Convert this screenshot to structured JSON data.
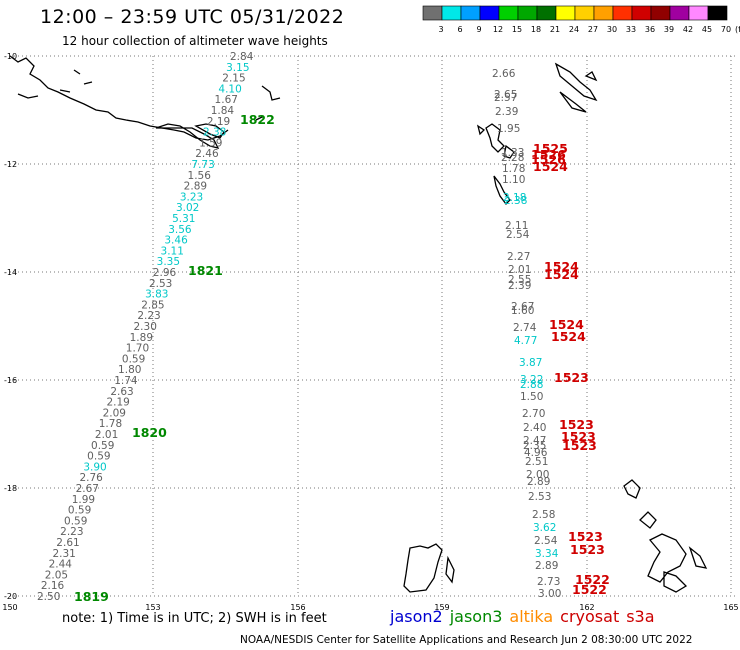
{
  "header": {
    "title": "12:00 – 23:59 UTC 05/31/2022",
    "subtitle": "12 hour collection of altimeter wave heights"
  },
  "colorbar": {
    "labels": [
      "3",
      "6",
      "9",
      "12",
      "15",
      "18",
      "21",
      "24",
      "27",
      "30",
      "33",
      "36",
      "39",
      "42",
      "45",
      "70"
    ],
    "unit": "(ft)",
    "colors": [
      "#707070",
      "#00e8e8",
      "#00a0ff",
      "#0000ff",
      "#00d000",
      "#00a800",
      "#007000",
      "#ffff00",
      "#ffd000",
      "#ffa000",
      "#ff3000",
      "#d00000",
      "#900000",
      "#a000a0",
      "#ff88ff",
      "#000000"
    ]
  },
  "axes": {
    "lat_labels": [
      "-10",
      "-12",
      "-14",
      "-16",
      "-18",
      "-20"
    ],
    "lon_labels": [
      "150",
      "153",
      "156",
      "159",
      "162",
      "165"
    ]
  },
  "colors": {
    "gray": "#606060",
    "cyan": "#00c8c8",
    "green": "#008800",
    "red": "#d00000",
    "blue": "#0000d0",
    "orange": "#ff8c00",
    "crimson": "#cc0000"
  },
  "track_left": {
    "obs": [
      {
        "t": "2.84",
        "c": "gray"
      },
      {
        "t": "3.15",
        "c": "cyan"
      },
      {
        "t": "2.15",
        "c": "gray"
      },
      {
        "t": "4.10",
        "c": "cyan"
      },
      {
        "t": "1.67",
        "c": "gray"
      },
      {
        "t": "1.84",
        "c": "gray"
      },
      {
        "t": "2.19",
        "c": "gray"
      },
      {
        "t": "2.38",
        "c": "cyan"
      },
      {
        "t": "1.59",
        "c": "gray"
      },
      {
        "t": "2.46",
        "c": "gray"
      },
      {
        "t": "7.73",
        "c": "cyan"
      },
      {
        "t": "1.56",
        "c": "gray"
      },
      {
        "t": "2.89",
        "c": "gray"
      },
      {
        "t": "3.23",
        "c": "cyan"
      },
      {
        "t": "3.02",
        "c": "cyan"
      },
      {
        "t": "5.31",
        "c": "cyan"
      },
      {
        "t": "3.56",
        "c": "cyan"
      },
      {
        "t": "3.46",
        "c": "cyan"
      },
      {
        "t": "3.11",
        "c": "cyan"
      },
      {
        "t": "3.35",
        "c": "cyan"
      },
      {
        "t": "2.96",
        "c": "gray"
      },
      {
        "t": "2.53",
        "c": "gray"
      },
      {
        "t": "3.83",
        "c": "cyan"
      },
      {
        "t": "2.85",
        "c": "gray"
      },
      {
        "t": "2.23",
        "c": "gray"
      },
      {
        "t": "2.30",
        "c": "gray"
      },
      {
        "t": "1.89",
        "c": "gray"
      },
      {
        "t": "1.70",
        "c": "gray"
      },
      {
        "t": "0.59",
        "c": "gray"
      },
      {
        "t": "1.80",
        "c": "gray"
      },
      {
        "t": "1.74",
        "c": "gray"
      },
      {
        "t": "2.63",
        "c": "gray"
      },
      {
        "t": "2.19",
        "c": "gray"
      },
      {
        "t": "2.09",
        "c": "gray"
      },
      {
        "t": "1.78",
        "c": "gray"
      },
      {
        "t": "2.01",
        "c": "gray"
      },
      {
        "t": "0.59",
        "c": "gray"
      },
      {
        "t": "0.59",
        "c": "gray"
      },
      {
        "t": "3.90",
        "c": "cyan"
      },
      {
        "t": "2.76",
        "c": "gray"
      },
      {
        "t": "2.67",
        "c": "gray"
      },
      {
        "t": "1.99",
        "c": "gray"
      },
      {
        "t": "0.59",
        "c": "gray"
      },
      {
        "t": "0.59",
        "c": "gray"
      },
      {
        "t": "2.23",
        "c": "gray"
      },
      {
        "t": "2.61",
        "c": "gray"
      },
      {
        "t": "2.31",
        "c": "gray"
      },
      {
        "t": "2.44",
        "c": "gray"
      },
      {
        "t": "2.05",
        "c": "gray"
      },
      {
        "t": "2.16",
        "c": "gray"
      },
      {
        "t": "2.50",
        "c": "gray"
      }
    ],
    "times": [
      "1822",
      "1821",
      "1820",
      "1819"
    ]
  },
  "track_right": {
    "obs": [
      {
        "t": "2.66",
        "c": "gray"
      },
      {
        "t": "2.65",
        "c": "gray"
      },
      {
        "t": "2.57",
        "c": "gray"
      },
      {
        "t": "2.39",
        "c": "gray"
      },
      {
        "t": "1.95",
        "c": "gray"
      },
      {
        "t": "1.33",
        "c": "gray"
      },
      {
        "t": "2.28",
        "c": "gray"
      },
      {
        "t": "1.78",
        "c": "gray"
      },
      {
        "t": "1.10",
        "c": "gray"
      },
      {
        "t": "2.18",
        "c": "cyan"
      },
      {
        "t": "2.38",
        "c": "cyan"
      },
      {
        "t": "2.11",
        "c": "gray"
      },
      {
        "t": "2.54",
        "c": "gray"
      },
      {
        "t": "2.27",
        "c": "gray"
      },
      {
        "t": "2.01",
        "c": "gray"
      },
      {
        "t": "2.55",
        "c": "gray"
      },
      {
        "t": "2.39",
        "c": "gray"
      },
      {
        "t": "2.67",
        "c": "gray"
      },
      {
        "t": "1.60",
        "c": "gray"
      },
      {
        "t": "2.74",
        "c": "gray"
      },
      {
        "t": "4.77",
        "c": "cyan"
      },
      {
        "t": "3.87",
        "c": "cyan"
      },
      {
        "t": "3.22",
        "c": "cyan"
      },
      {
        "t": "2.88",
        "c": "cyan"
      },
      {
        "t": "1.50",
        "c": "gray"
      },
      {
        "t": "2.70",
        "c": "gray"
      },
      {
        "t": "2.40",
        "c": "gray"
      },
      {
        "t": "2.47",
        "c": "gray"
      },
      {
        "t": "2.35",
        "c": "gray"
      },
      {
        "t": "4.96",
        "c": "gray"
      },
      {
        "t": "2.51",
        "c": "gray"
      },
      {
        "t": "2.00",
        "c": "gray"
      },
      {
        "t": "2.89",
        "c": "gray"
      },
      {
        "t": "2.53",
        "c": "gray"
      },
      {
        "t": "2.58",
        "c": "gray"
      },
      {
        "t": "3.62",
        "c": "cyan"
      },
      {
        "t": "2.54",
        "c": "gray"
      },
      {
        "t": "3.34",
        "c": "cyan"
      },
      {
        "t": "2.89",
        "c": "gray"
      },
      {
        "t": "2.73",
        "c": "gray"
      },
      {
        "t": "3.00",
        "c": "gray"
      }
    ],
    "times": [
      "1525",
      "1526",
      "1526",
      "1524",
      "1524",
      "1524",
      "1524",
      "1524",
      "1523",
      "1523",
      "1523",
      "1523",
      "1523",
      "1523",
      "1522",
      "1522"
    ]
  },
  "footer": {
    "note": "note: 1) Time is in UTC; 2) SWH is in feet",
    "legend": [
      {
        "label": "jason2",
        "color": "blue"
      },
      {
        "label": "jason3",
        "color": "green"
      },
      {
        "label": "altika",
        "color": "orange"
      },
      {
        "label": "cryosat",
        "color": "crimson"
      },
      {
        "label": "s3a",
        "color": "crimson"
      }
    ],
    "credit": "NOAA/NESDIS Center for Satellite Applications and Research    Jun  2 08:30:00 UTC 2022"
  }
}
